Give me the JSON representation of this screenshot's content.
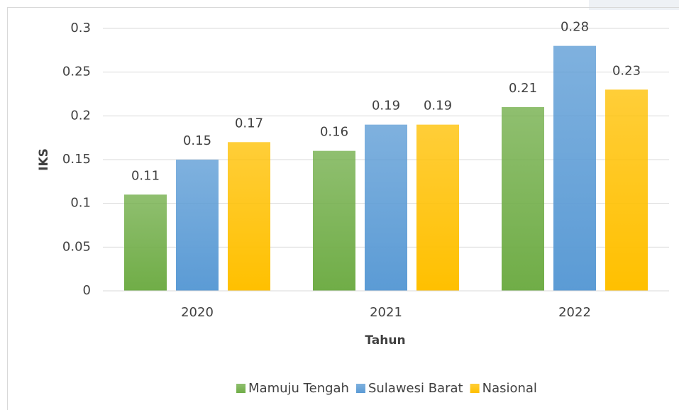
{
  "chart_data": {
    "type": "bar",
    "x_label": "Tahun",
    "y_label": "IKS",
    "categories": [
      "2020",
      "2021",
      "2022"
    ],
    "series": [
      {
        "name": "Mamuju Tengah",
        "color": "#70ad47",
        "values": [
          0.11,
          0.16,
          0.21
        ]
      },
      {
        "name": "Sulawesi Barat",
        "color": "#5b9bd5",
        "values": [
          0.15,
          0.19,
          0.28
        ]
      },
      {
        "name": "Nasional",
        "color": "#ffc000",
        "values": [
          0.17,
          0.19,
          0.23
        ]
      }
    ],
    "ylim": [
      0,
      0.3
    ],
    "yticks": [
      0,
      0.05,
      0.1,
      0.15,
      0.2,
      0.25,
      0.3
    ],
    "grid": true,
    "legend": "bottom"
  }
}
